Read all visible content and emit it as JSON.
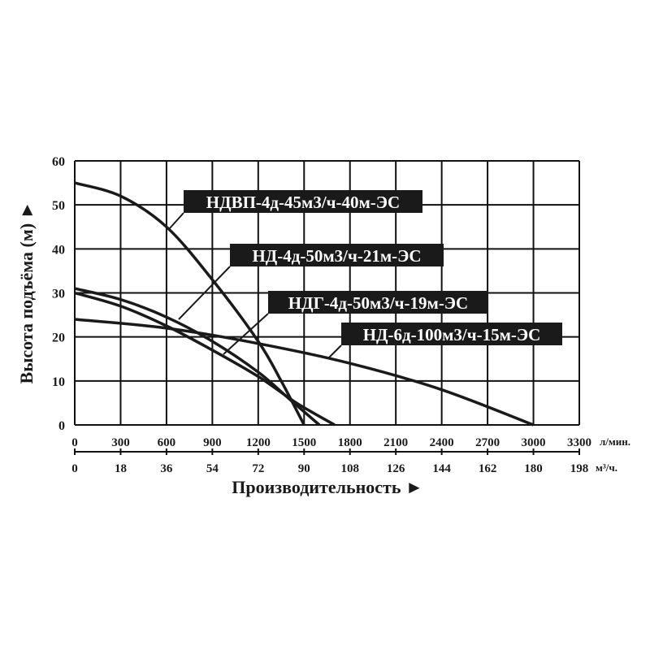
{
  "chart_data": {
    "type": "line",
    "title": "",
    "ylabel": "Высота подъёма (м) ►",
    "xlabel": "Производительность ►",
    "x_unit": "л/мин.",
    "x2_unit": "м³/ч.",
    "xlim": [
      0,
      3300
    ],
    "ylim": [
      0,
      60
    ],
    "grid": true,
    "x_ticks": [
      "0",
      "300",
      "600",
      "900",
      "1200",
      "1500",
      "1800",
      "2100",
      "2400",
      "2700",
      "3000",
      "3300"
    ],
    "x2_ticks": [
      "0",
      "18",
      "36",
      "54",
      "72",
      "90",
      "108",
      "126",
      "144",
      "162",
      "180",
      "198"
    ],
    "y_ticks": [
      "0",
      "10",
      "20",
      "30",
      "40",
      "50",
      "60"
    ],
    "series": [
      {
        "name": "НДВП-4д-45м3/ч-40м-ЭС",
        "x": [
          0,
          300,
          600,
          900,
          1200,
          1350,
          1500
        ],
        "y": [
          55,
          52,
          45,
          33,
          19,
          10,
          0
        ]
      },
      {
        "name": "НД-4д-50м3/ч-21м-ЭС",
        "x": [
          0,
          300,
          600,
          900,
          1200,
          1400,
          1600
        ],
        "y": [
          31,
          28.5,
          24.5,
          19,
          12,
          6,
          0
        ]
      },
      {
        "name": "НДГ-4д-50м3/ч-19м-ЭС",
        "x": [
          0,
          300,
          600,
          900,
          1200,
          1450,
          1700
        ],
        "y": [
          30,
          27,
          22.5,
          17,
          11,
          5,
          0
        ]
      },
      {
        "name": "НД-6д-100м3/ч-15м-ЭС",
        "x": [
          0,
          600,
          1200,
          1800,
          2400,
          3000
        ],
        "y": [
          24,
          22,
          18.5,
          14,
          8,
          0
        ]
      }
    ]
  }
}
